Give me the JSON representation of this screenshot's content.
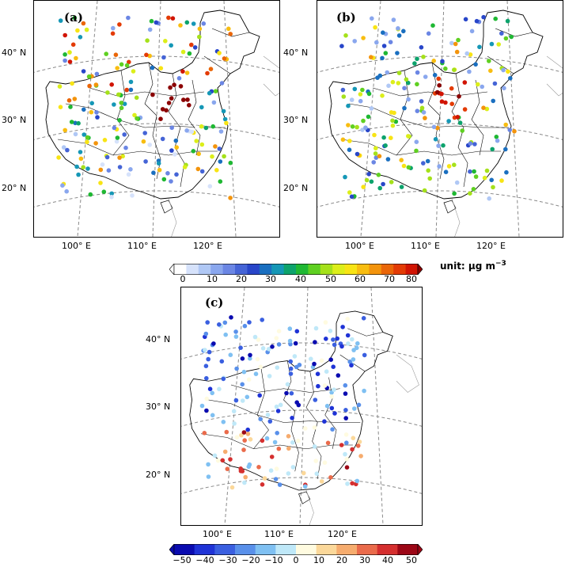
{
  "panels": [
    {
      "label": "(a)",
      "lat_labels": [
        "40° N",
        "30° N",
        "20° N"
      ],
      "lon_labels": [
        "100° E",
        "110° E",
        "120° E"
      ]
    },
    {
      "label": "(b)",
      "lat_labels": [
        "40° N",
        "30° N",
        "20° N"
      ],
      "lon_labels": [
        "100° E",
        "110° E",
        "120° E"
      ]
    },
    {
      "label": "(c)",
      "lat_labels": [
        "40° N",
        "30° N",
        "20° N"
      ],
      "lon_labels": [
        "100° E",
        "110° E",
        "120° E"
      ]
    }
  ],
  "colorbar_top": {
    "ticks": [
      "0",
      "10",
      "20",
      "30",
      "40",
      "50",
      "60",
      "70",
      "80"
    ],
    "unit_main": "unit: μg m",
    "unit_sup": "−3",
    "colors": [
      "#ffffff",
      "#d6e2fb",
      "#b0c8f5",
      "#8aa7ee",
      "#6b86e4",
      "#4564d6",
      "#2846c9",
      "#1a6fc0",
      "#1597b6",
      "#0da36c",
      "#1fb833",
      "#5fd021",
      "#a5e11a",
      "#dcee1a",
      "#f8e414",
      "#f8bd10",
      "#f3940c",
      "#ea6608",
      "#e33b05",
      "#d11403"
    ],
    "over_color": "#8b0000"
  },
  "colorbar_bottom": {
    "ticks": [
      "−50",
      "−40",
      "−30",
      "−20",
      "−10",
      "0",
      "10",
      "20",
      "30",
      "40",
      "50"
    ],
    "colors": [
      "#0a0bb0",
      "#1f33d6",
      "#3a5fe0",
      "#5990ea",
      "#7fc0f2",
      "#bfe8f8",
      "#fffbe0",
      "#fbd89a",
      "#f6ac6e",
      "#ea6b4b",
      "#d52f2f",
      "#9c0716"
    ]
  },
  "map_style": {
    "grid_color": "#8a8a8a",
    "border_color": "#000000"
  }
}
